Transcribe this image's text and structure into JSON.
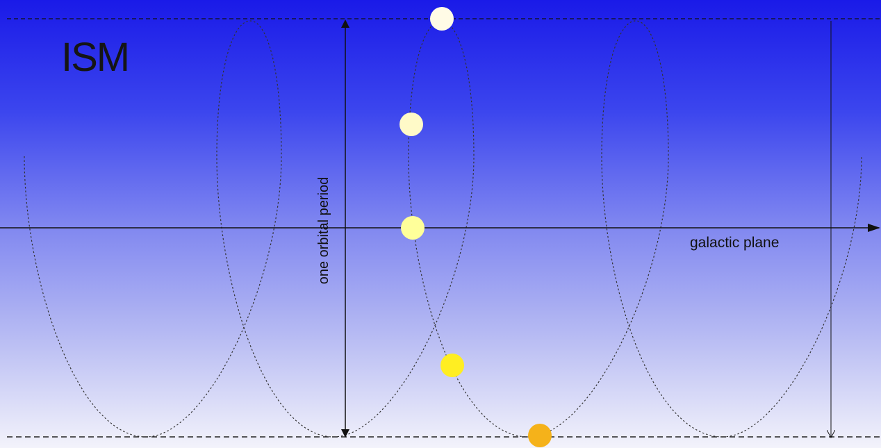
{
  "labels": {
    "region": "ISM",
    "plane": "galactic plane",
    "period": "one orbital period"
  },
  "colors": {
    "background_top": "#1a1ae8",
    "background_bottom": "#f3f3fb",
    "axis": "#111111",
    "orbit_curve": "#333333",
    "star_positions": [
      "#fffbe6",
      "#fffac8",
      "#ffff9a",
      "#ffee22",
      "#f5b21a"
    ]
  },
  "orbit_curves": 4,
  "star_positions": 5
}
